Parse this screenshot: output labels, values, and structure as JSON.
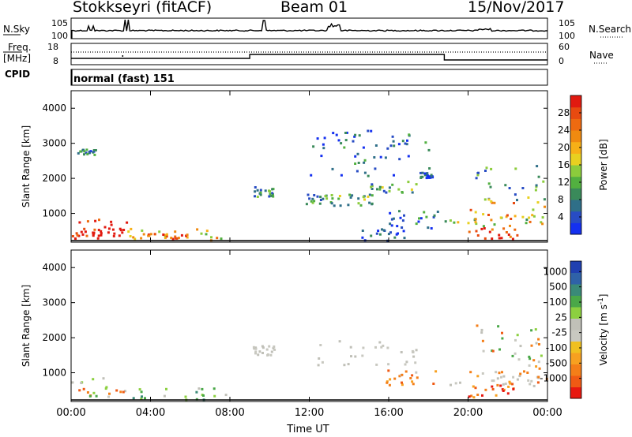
{
  "header": {
    "station": "Stokkseyri (fitACF)",
    "beam": "Beam 01",
    "date": "15/Nov/2017"
  },
  "sky_panel": {
    "left_label": "N.Sky",
    "right_label": "N.Search",
    "ytick_top": "10^5",
    "ytick_bottom": "10^0"
  },
  "freq_panel": {
    "left_label_1": "Freq.",
    "left_label_2": "[MHz]",
    "ytick_top": "18",
    "ytick_bottom": "8",
    "right_label": "Nave",
    "rtick_top": "60",
    "rtick_bottom": "0"
  },
  "cpid": {
    "label": "CPID",
    "value": "normal (fast) 151"
  },
  "chart_data": [
    {
      "type": "heatmap",
      "quantity": "Power",
      "ylabel": "Slant Range [km]",
      "ylim": [
        180,
        4500
      ],
      "yticks": [
        "1000",
        "2000",
        "3000",
        "4000"
      ],
      "xlim_hours": [
        0,
        24
      ],
      "colorbar_label": "Power [dB]",
      "colorbar_ticks": [
        "4",
        "8",
        "12",
        "16",
        "20",
        "24",
        "28"
      ],
      "colorbar_colors": [
        "#1430f0",
        "#284cc4",
        "#2f6f88",
        "#3a8a5a",
        "#52b040",
        "#8ccc3c",
        "#e8d020",
        "#f7b017",
        "#f08a10",
        "#ee6a10",
        "#e84a10",
        "#e11a10"
      ],
      "scatter_regions": [
        {
          "t_start": 0.0,
          "t_end": 2.8,
          "r_min": 300,
          "r_max": 900,
          "p": 32
        },
        {
          "t_start": 0.4,
          "t_end": 2.6,
          "r_min": 380,
          "r_max": 600,
          "p": 40
        },
        {
          "t_start": 2.8,
          "t_end": 7.8,
          "r_min": 260,
          "r_max": 600,
          "p": 20
        },
        {
          "t_start": 3.0,
          "t_end": 5.8,
          "r_min": 300,
          "r_max": 460,
          "p": 26
        },
        {
          "t_start": 0.3,
          "t_end": 1.2,
          "r_min": 2700,
          "r_max": 2850,
          "p": 6
        },
        {
          "t_start": 9.1,
          "t_end": 10.2,
          "r_min": 1500,
          "r_max": 1800,
          "p": 8
        },
        {
          "t_start": 11.8,
          "t_end": 13.2,
          "r_min": 1300,
          "r_max": 1600,
          "p": 10
        },
        {
          "t_start": 13.2,
          "t_end": 15.8,
          "r_min": 1250,
          "r_max": 1600,
          "p": 12
        },
        {
          "t_start": 15.0,
          "t_end": 17.5,
          "r_min": 1550,
          "r_max": 1950,
          "p": 10
        },
        {
          "t_start": 15.8,
          "t_end": 18.5,
          "r_min": 600,
          "r_max": 1100,
          "p": 6
        },
        {
          "t_start": 14.5,
          "t_end": 16.8,
          "r_min": 250,
          "r_max": 700,
          "p": 4
        },
        {
          "t_start": 17.5,
          "t_end": 18.2,
          "r_min": 2000,
          "r_max": 2200,
          "p": 5
        },
        {
          "t_start": 18.8,
          "t_end": 24.0,
          "r_min": 650,
          "r_max": 950,
          "p": 16
        },
        {
          "t_start": 20.0,
          "t_end": 24.0,
          "r_min": 700,
          "r_max": 1400,
          "p": 22
        },
        {
          "t_start": 20.0,
          "t_end": 22.5,
          "r_min": 300,
          "r_max": 700,
          "p": 28
        },
        {
          "t_start": 20.3,
          "t_end": 24.0,
          "r_min": 1400,
          "r_max": 2400,
          "p": 10
        },
        {
          "t_start": 12.0,
          "t_end": 18.0,
          "r_min": 2100,
          "r_max": 3400,
          "p": 5
        }
      ]
    },
    {
      "type": "heatmap",
      "quantity": "Velocity",
      "ylabel": "Slant Range [km]",
      "ylim": [
        180,
        4500
      ],
      "yticks": [
        "1000",
        "2000",
        "3000",
        "4000"
      ],
      "xlim_hours": [
        0,
        24
      ],
      "xticks": [
        "00:00",
        "04:00",
        "08:00",
        "12:00",
        "16:00",
        "20:00",
        "00:00"
      ],
      "xlabel": "Time UT",
      "colorbar_label": "Velocity [m s^-1]",
      "colorbar_ticks": [
        "1000",
        "500",
        "100",
        "25",
        "-25",
        "-100",
        "-500",
        "-1000"
      ],
      "colorbar_colors": [
        "#2040b0",
        "#2f62a8",
        "#3a8a78",
        "#4aa848",
        "#8cd040",
        "#c0c0b8",
        "#c8c8c0",
        "#f0c020",
        "#f7a020",
        "#f47e18",
        "#f05a14",
        "#e81810"
      ],
      "scatter_regions": [
        {
          "t_start": 0.0,
          "t_end": 2.8,
          "r_min": 300,
          "r_max": 900,
          "v": "mixed"
        },
        {
          "t_start": 2.8,
          "t_end": 7.8,
          "r_min": 260,
          "r_max": 600,
          "v": "positive"
        },
        {
          "t_start": 9.1,
          "t_end": 10.2,
          "r_min": 1500,
          "r_max": 1800,
          "v": "near-zero"
        },
        {
          "t_start": 11.8,
          "t_end": 17.5,
          "r_min": 1250,
          "r_max": 1950,
          "v": "near-zero"
        },
        {
          "t_start": 15.8,
          "t_end": 18.5,
          "r_min": 600,
          "r_max": 1100,
          "v": "negative"
        },
        {
          "t_start": 18.8,
          "t_end": 24.0,
          "r_min": 650,
          "r_max": 950,
          "v": "near-zero"
        },
        {
          "t_start": 20.0,
          "t_end": 24.0,
          "r_min": 700,
          "r_max": 1400,
          "v": "negative"
        },
        {
          "t_start": 20.0,
          "t_end": 22.5,
          "r_min": 300,
          "r_max": 700,
          "v": "negative-strong"
        },
        {
          "t_start": 20.3,
          "t_end": 24.0,
          "r_min": 1400,
          "r_max": 2400,
          "v": "mixed"
        }
      ]
    }
  ]
}
